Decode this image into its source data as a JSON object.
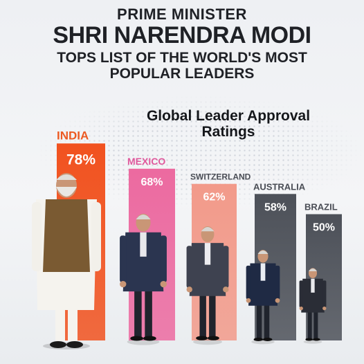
{
  "header": {
    "line1": "PRIME MINISTER",
    "line2": "SHRI NARENDRA MODI",
    "line3": "TOPS LIST OF THE WORLD'S MOST",
    "line4": "POPULAR LEADERS"
  },
  "chart_data": {
    "type": "bar",
    "title": "Global Leader Approval Ratings",
    "categories": [
      "INDIA",
      "MEXICO",
      "SWITZERLAND",
      "AUSTRALIA",
      "BRAZIL"
    ],
    "values": [
      78,
      68,
      62,
      58,
      50
    ],
    "value_labels": [
      "78%",
      "68%",
      "62%",
      "58%",
      "50%"
    ],
    "colors": [
      "#f1521f",
      "#ec6aa0",
      "#f29a8a",
      "#4d5159",
      "#4d5159"
    ],
    "label_colors": [
      "#ec5a22",
      "#e0589c",
      "#4a4d55",
      "#4a4d55",
      "#4a4d55"
    ],
    "icons": [
      "leader-figure-white-kurta",
      "leader-figure-dark-suit",
      "leader-figure-grey-suit",
      "leader-figure-navy-suit",
      "leader-figure-dark-suit"
    ],
    "ylim": [
      0,
      80
    ],
    "grid": false,
    "legend": "none"
  }
}
